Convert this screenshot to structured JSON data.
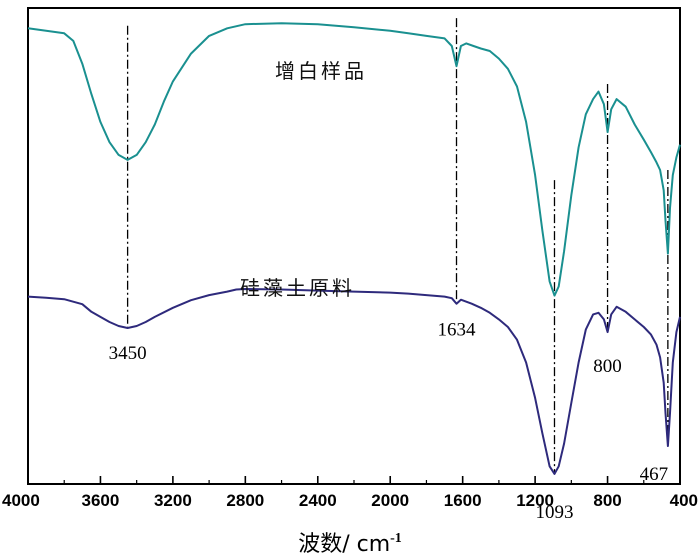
{
  "chart_data": {
    "type": "line",
    "xlabel": "波数/ cm",
    "xlabel_sup": "-1",
    "xlim": [
      4000,
      400
    ],
    "x_reversed": true,
    "x_ticks": [
      4000,
      3600,
      3200,
      2800,
      2400,
      2000,
      1600,
      1200,
      800,
      400
    ],
    "y_axis_shown": false,
    "grid": false,
    "series": [
      {
        "name": "增白样品",
        "color": "#1a9090",
        "x": [
          4000,
          3900,
          3800,
          3750,
          3700,
          3650,
          3600,
          3550,
          3500,
          3450,
          3400,
          3350,
          3300,
          3250,
          3200,
          3100,
          3000,
          2900,
          2800,
          2600,
          2400,
          2200,
          2000,
          1900,
          1800,
          1700,
          1660,
          1634,
          1610,
          1580,
          1540,
          1500,
          1450,
          1400,
          1350,
          1300,
          1250,
          1200,
          1160,
          1120,
          1093,
          1070,
          1040,
          1000,
          960,
          920,
          880,
          850,
          820,
          800,
          780,
          750,
          700,
          650,
          600,
          560,
          530,
          510,
          490,
          480,
          467,
          455,
          440,
          420,
          400
        ],
        "y": [
          88.0,
          87.5,
          87.0,
          85.5,
          81.0,
          75.0,
          69.5,
          65.5,
          63.0,
          62.0,
          63.0,
          65.5,
          69.0,
          73.5,
          77.5,
          83.0,
          86.5,
          88.0,
          88.8,
          89.0,
          88.8,
          88.2,
          87.5,
          87.0,
          86.5,
          86.0,
          84.5,
          80.5,
          84.5,
          85.0,
          84.5,
          84.0,
          83.5,
          82.0,
          80.0,
          76.5,
          69.5,
          59.0,
          48.0,
          38.0,
          35.2,
          37.0,
          44.0,
          55.0,
          64.5,
          71.0,
          74.0,
          75.5,
          73.0,
          67.5,
          72.0,
          74.0,
          72.5,
          69.0,
          66.0,
          63.5,
          61.5,
          60.0,
          56.0,
          50.0,
          43.5,
          52.5,
          59.0,
          62.5,
          65.0
        ]
      },
      {
        "name": "硅藻土原料",
        "color": "#2e2a7c",
        "x": [
          4000,
          3900,
          3800,
          3700,
          3650,
          3600,
          3550,
          3500,
          3450,
          3400,
          3350,
          3300,
          3200,
          3100,
          3000,
          2900,
          2850,
          2800,
          2600,
          2400,
          2200,
          2000,
          1900,
          1800,
          1700,
          1660,
          1634,
          1610,
          1550,
          1500,
          1450,
          1400,
          1350,
          1300,
          1250,
          1200,
          1160,
          1120,
          1093,
          1070,
          1040,
          1000,
          960,
          920,
          880,
          850,
          820,
          800,
          780,
          750,
          700,
          650,
          600,
          560,
          530,
          510,
          490,
          480,
          467,
          455,
          440,
          420,
          400
        ],
        "y": [
          35.0,
          34.8,
          34.5,
          33.5,
          32.0,
          31.0,
          30.0,
          29.2,
          28.8,
          29.2,
          30.0,
          31.0,
          32.8,
          34.3,
          35.3,
          36.0,
          36.4,
          36.5,
          36.4,
          36.2,
          36.0,
          35.8,
          35.6,
          35.3,
          35.0,
          34.7,
          33.6,
          34.4,
          33.6,
          32.8,
          31.8,
          30.5,
          29.0,
          26.5,
          22.0,
          15.0,
          8.0,
          1.5,
          0.0,
          1.5,
          6.0,
          14.0,
          22.0,
          28.5,
          31.5,
          31.8,
          30.5,
          28.0,
          31.5,
          33.0,
          32.0,
          30.5,
          29.0,
          27.5,
          25.5,
          23.0,
          18.0,
          12.0,
          5.5,
          12.0,
          22.0,
          28.0,
          31.0
        ]
      }
    ],
    "peak_lines_color": "#000000",
    "peak_lines": [
      {
        "x": 3450,
        "y_from": 88.5,
        "y_to": 29.0
      },
      {
        "x": 1634,
        "y_from": 90.0,
        "y_to": 34.0
      },
      {
        "x": 1093,
        "y_from": 58.0,
        "y_to": 0.0
      },
      {
        "x": 800,
        "y_from": 77.0,
        "y_to": 28.0
      },
      {
        "x": 467,
        "y_from": 60.0,
        "y_to": 5.5
      }
    ],
    "annotations": [
      {
        "text": "3450",
        "x": 3450
      },
      {
        "text": "1634",
        "x": 1634
      },
      {
        "text": "1093",
        "x": 1093
      },
      {
        "text": "800",
        "x": 800
      },
      {
        "text": "467",
        "x": 467
      }
    ]
  }
}
